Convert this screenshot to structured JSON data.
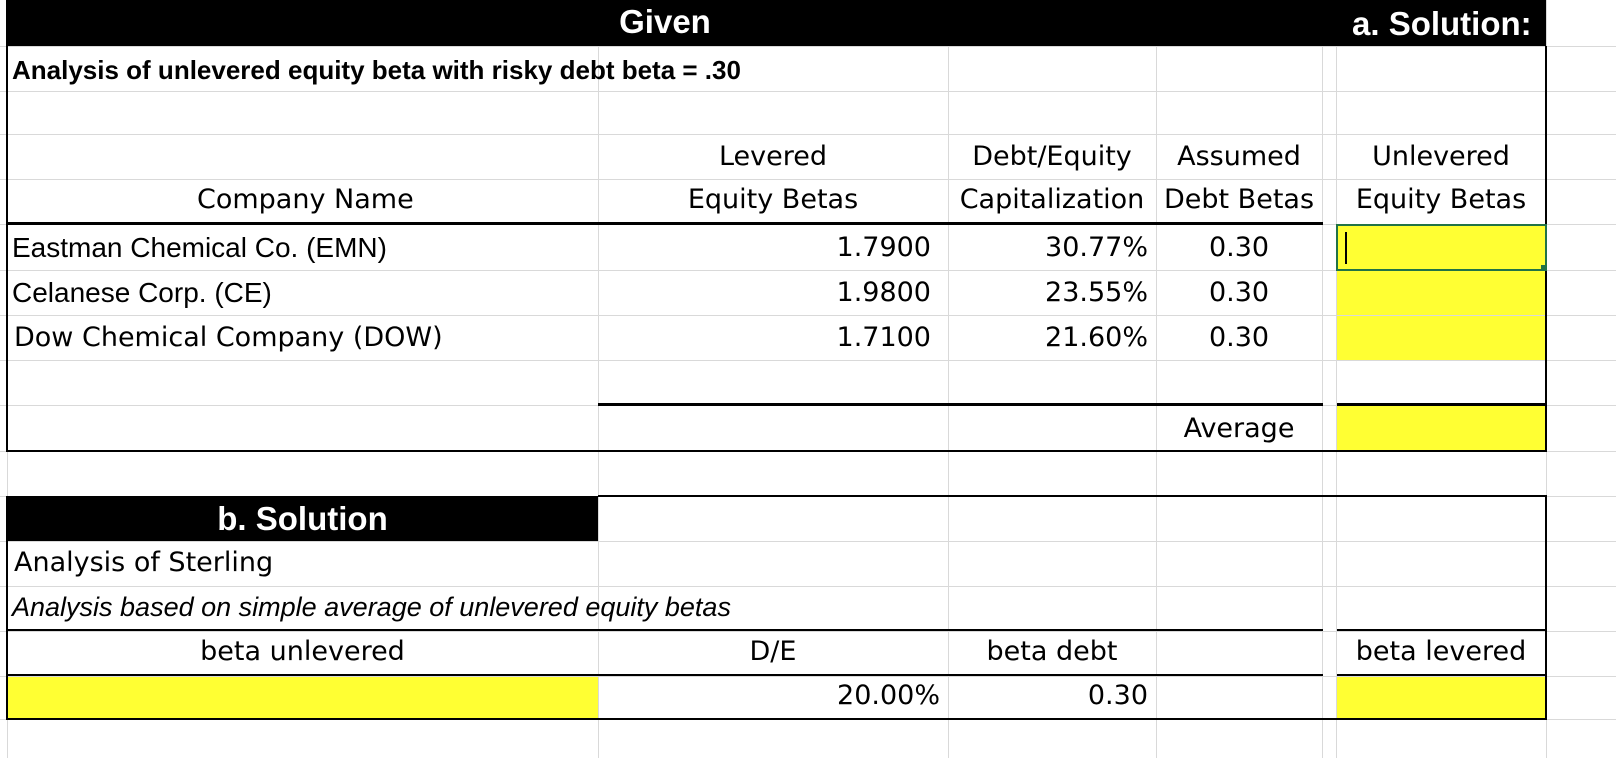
{
  "headers": {
    "given": "Given",
    "a_solution": "a. Solution:",
    "b_solution": "b. Solution"
  },
  "section_a": {
    "title": "Analysis of unlevered equity beta with risky debt beta = .30",
    "columns": {
      "company": "Company Name",
      "levered_1": "Levered",
      "levered_2": "Equity Betas",
      "de_1": "Debt/Equity",
      "de_2": "Capitalization",
      "debt_1": "Assumed",
      "debt_2": "Debt Betas",
      "unlev_1": "Unlevered",
      "unlev_2": "Equity Betas"
    },
    "rows": [
      {
        "company": "Eastman Chemical Co. (EMN)",
        "levered_beta": "1.7900",
        "de_cap": "30.77%",
        "debt_beta": "0.30",
        "unlevered_beta": ""
      },
      {
        "company": "Celanese Corp. (CE)",
        "levered_beta": "1.9800",
        "de_cap": "23.55%",
        "debt_beta": "0.30",
        "unlevered_beta": ""
      },
      {
        "company": "Dow Chemical Company (DOW)",
        "levered_beta": "1.7100",
        "de_cap": "21.60%",
        "debt_beta": "0.30",
        "unlevered_beta": ""
      }
    ],
    "average_label": "Average",
    "average_value": ""
  },
  "section_b": {
    "analysis_title": "Analysis of Sterling",
    "analysis_note": "Analysis based on simple average of unlevered equity betas",
    "columns": {
      "beta_unlevered": "beta unlevered",
      "de": "D/E",
      "beta_debt": "beta debt",
      "beta_levered": "beta levered"
    },
    "values": {
      "beta_unlevered": "",
      "de": "20.00%",
      "beta_debt": "0.30",
      "beta_levered": ""
    }
  },
  "colors": {
    "input_yellow": "#ffff33",
    "header_black": "#000000",
    "gridline": "#d9d9d9",
    "selection_green": "#217346"
  }
}
